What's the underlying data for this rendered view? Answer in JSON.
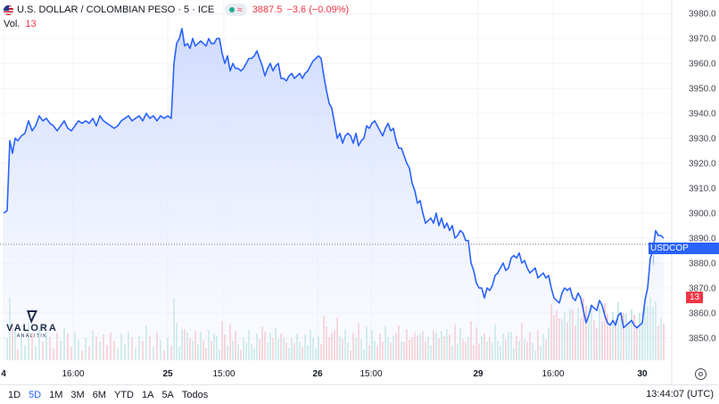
{
  "legend": {
    "title": "U.S. DOLLAR / COLOMBIAN PESO · 5 · ICE",
    "price": "3887.5",
    "change": "−3.6 (−0.09%)",
    "icon": "us-flag-icon"
  },
  "volume": {
    "label": "Vol.",
    "value": "13"
  },
  "price_tag": {
    "symbol": "USDCOP",
    "value": "3887.5"
  },
  "volume_tag": "13",
  "logo": {
    "name": "VALORA",
    "sub": "ANALITIK"
  },
  "ranges": [
    "1D",
    "5D",
    "1M",
    "3M",
    "6M",
    "YTD",
    "1A",
    "5A",
    "Todos"
  ],
  "active_range": "5D",
  "clock": "13:44:07 (UTC)",
  "colors": {
    "line": "#2962ff",
    "area_top": "#c9d6ff",
    "up": "#22ab94",
    "down": "#f23645"
  },
  "chart_data": {
    "type": "area",
    "ylim": [
      3841,
      3984
    ],
    "y_ticks": [
      3980.0,
      3970.0,
      3960.0,
      3950.0,
      3940.0,
      3930.0,
      3920.0,
      3910.0,
      3900.0,
      3890.0,
      3880.0,
      3870.0,
      3860.0,
      3850.0
    ],
    "x_ticks": [
      {
        "label": "4",
        "t": 0
      },
      {
        "label": "16:00",
        "t": 78
      },
      {
        "label": "25",
        "t": 184
      },
      {
        "label": "15:00",
        "t": 247
      },
      {
        "label": "26",
        "t": 352
      },
      {
        "label": "15:00",
        "t": 412
      },
      {
        "label": "29",
        "t": 532
      },
      {
        "label": "16:00",
        "t": 616
      },
      {
        "label": "30",
        "t": 716
      }
    ],
    "last_price": 3887.5,
    "series": [
      {
        "t": [
          0,
          4,
          7,
          10,
          13,
          16,
          20,
          24,
          28,
          32,
          36,
          40,
          44,
          48,
          52,
          56,
          60,
          64,
          68,
          72,
          76,
          80,
          84,
          88,
          92,
          96,
          100,
          104,
          108,
          112,
          116,
          120,
          124,
          128,
          132,
          136,
          140,
          144,
          148,
          152,
          156,
          160,
          164,
          168,
          172,
          176,
          180,
          184,
          188,
          191,
          194,
          197,
          200,
          203,
          206,
          209,
          212,
          215,
          218,
          221,
          224,
          227,
          230,
          233,
          236,
          239,
          242,
          245,
          248,
          251,
          254,
          257,
          260,
          263,
          266,
          269,
          272,
          275,
          278,
          281,
          284,
          287,
          290,
          293,
          296,
          299,
          302,
          305,
          308,
          311,
          314,
          317,
          320,
          323,
          326,
          329,
          332,
          335,
          338,
          341,
          344,
          347,
          350,
          353,
          356,
          359,
          362,
          365,
          368,
          371,
          374,
          377,
          380,
          383,
          386,
          389,
          392,
          395,
          398,
          401,
          404,
          407,
          410,
          413,
          416,
          419,
          422,
          425,
          428,
          431,
          434,
          437,
          440,
          443,
          446,
          449,
          452,
          455,
          458,
          461,
          464,
          467,
          470,
          473,
          476,
          479,
          482,
          485,
          488,
          491,
          494,
          497,
          500,
          503,
          506,
          509,
          512,
          515,
          518,
          521,
          524,
          527,
          530,
          533,
          536,
          539,
          542,
          545,
          548,
          551,
          554,
          557,
          560,
          563,
          566,
          569,
          572,
          575,
          578,
          581,
          584,
          587,
          590,
          593,
          596,
          599,
          602,
          605,
          608,
          611,
          614,
          617,
          620,
          623,
          626,
          629,
          632,
          635,
          638,
          641,
          644,
          647,
          650,
          653,
          656,
          659,
          662,
          665,
          668,
          671,
          674,
          677,
          680,
          683,
          686,
          689,
          692,
          695,
          698,
          701,
          704,
          707,
          710,
          713,
          716,
          719,
          722,
          725,
          728,
          731,
          734,
          737,
          740
        ],
        "y": [
          3900,
          3901,
          3929,
          3924,
          3930,
          3929,
          3931,
          3932,
          3937,
          3933,
          3935,
          3939,
          3937,
          3938,
          3936,
          3935,
          3933,
          3935,
          3937,
          3934,
          3933,
          3935,
          3937,
          3936,
          3937,
          3936,
          3938,
          3935,
          3939,
          3937,
          3936,
          3935,
          3934,
          3935,
          3937,
          3938,
          3939,
          3937,
          3938,
          3939,
          3937,
          3940,
          3938,
          3939,
          3937,
          3939,
          3938,
          3939,
          3938,
          3960,
          3968,
          3970,
          3974,
          3967,
          3968,
          3966,
          3970,
          3967,
          3968,
          3969,
          3968,
          3967,
          3970,
          3968,
          3968,
          3970,
          3970,
          3964,
          3960,
          3963,
          3957,
          3960,
          3958,
          3958,
          3957,
          3958,
          3960,
          3962,
          3962,
          3963,
          3965,
          3962,
          3959,
          3955,
          3958,
          3960,
          3957,
          3959,
          3960,
          3954,
          3954,
          3953,
          3955,
          3956,
          3954,
          3955,
          3956,
          3954,
          3956,
          3957,
          3959,
          3961,
          3962,
          3963,
          3962,
          3955,
          3949,
          3944,
          3942,
          3936,
          3930,
          3932,
          3928,
          3931,
          3932,
          3931,
          3928,
          3932,
          3927,
          3929,
          3930,
          3935,
          3934,
          3936,
          3937,
          3935,
          3933,
          3931,
          3934,
          3936,
          3933,
          3934,
          3929,
          3926,
          3926,
          3923,
          3920,
          3918,
          3912,
          3909,
          3904,
          3905,
          3900,
          3896,
          3897,
          3898,
          3896,
          3900,
          3895,
          3898,
          3894,
          3896,
          3893,
          3895,
          3890,
          3891,
          3893,
          3892,
          3889,
          3889,
          3880,
          3877,
          3872,
          3870,
          3870,
          3866,
          3870,
          3869,
          3871,
          3875,
          3876,
          3878,
          3880,
          3877,
          3878,
          3882,
          3883,
          3882,
          3884,
          3880,
          3881,
          3878,
          3876,
          3877,
          3878,
          3874,
          3875,
          3876,
          3874,
          3875,
          3870,
          3866,
          3865,
          3864,
          3868,
          3870,
          3869,
          3870,
          3866,
          3865,
          3868,
          3866,
          3861,
          3856,
          3859,
          3863,
          3862,
          3861,
          3865,
          3863,
          3859,
          3856,
          3855,
          3857,
          3855,
          3859,
          3860,
          3854,
          3855,
          3856,
          3857,
          3855,
          3854,
          3855,
          3856,
          3865,
          3870,
          3882,
          3885,
          3893,
          3891,
          3891,
          3890
        ]
      }
    ]
  }
}
